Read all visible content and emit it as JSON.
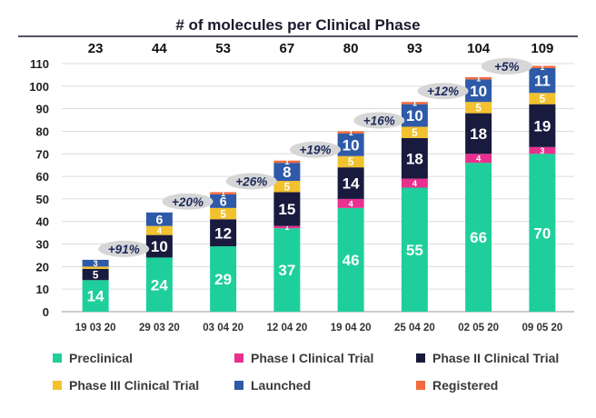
{
  "chart_data": {
    "type": "stacked-bar",
    "title": "# of molecules per Clinical Phase",
    "categories": [
      "19 03 20",
      "29 03 20",
      "03 04 20",
      "12 04 20",
      "19 04 20",
      "25 04 20",
      "02 05 20",
      "09 05 20"
    ],
    "totals": [
      "23",
      "44",
      "53",
      "67",
      "80",
      "93",
      "104",
      "109"
    ],
    "growth": [
      "+91%",
      "+20%",
      "+26%",
      "+19%",
      "+16%",
      "+12%",
      "+5%"
    ],
    "ylim": [
      0,
      110
    ],
    "yticks": [
      0,
      10,
      20,
      30,
      40,
      50,
      60,
      70,
      80,
      90,
      100,
      110
    ],
    "series": [
      {
        "name": "Preclinical",
        "color": "#1fcf9b",
        "values": [
          14,
          24,
          29,
          37,
          46,
          55,
          66,
          70
        ],
        "labels": [
          "14",
          "24",
          "29",
          "37",
          "46",
          "55",
          "66",
          "70"
        ]
      },
      {
        "name": "Phase I Clinical Trial",
        "color": "#e8308f",
        "values": [
          0,
          0,
          0,
          1,
          4,
          4,
          4,
          3
        ],
        "labels": [
          "",
          "",
          "",
          "1",
          "4",
          "4",
          "4",
          "3"
        ]
      },
      {
        "name": "Phase II Clinical Trial",
        "color": "#191b3e",
        "values": [
          5,
          10,
          12,
          15,
          14,
          18,
          18,
          19
        ],
        "labels": [
          "5",
          "10",
          "12",
          "15",
          "14",
          "18",
          "18",
          "19"
        ]
      },
      {
        "name": "Phase III Clinical Trial",
        "color": "#f2c12e",
        "values": [
          1,
          4,
          5,
          5,
          5,
          5,
          5,
          5
        ],
        "labels": [
          "",
          "4",
          "5",
          "5",
          "5",
          "5",
          "5",
          "5"
        ]
      },
      {
        "name": "Launched",
        "color": "#2e5aa8",
        "values": [
          3,
          6,
          6,
          8,
          10,
          10,
          10,
          11
        ],
        "labels": [
          "3",
          "6",
          "6",
          "8",
          "10",
          "10",
          "10",
          "11"
        ]
      },
      {
        "name": "Registered",
        "color": "#f26a3d",
        "values": [
          0,
          0,
          1,
          1,
          1,
          1,
          1,
          1
        ],
        "labels": [
          "",
          "",
          "1",
          "1",
          "1",
          "1",
          "1",
          "1"
        ]
      }
    ]
  }
}
